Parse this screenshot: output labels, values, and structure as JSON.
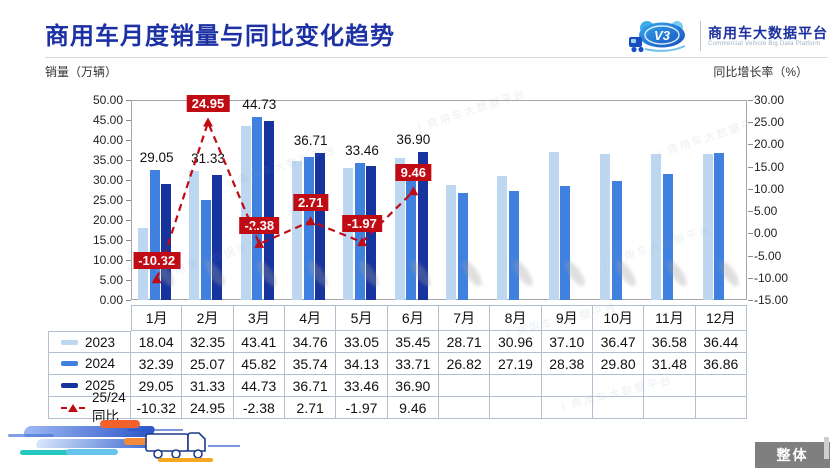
{
  "header": {
    "title": "商用车月度销量与同比变化趋势"
  },
  "logo": {
    "badge": "V3",
    "name_cn": "商用车大数据平台",
    "name_en": "Commercial Vehicle Big Data Platform"
  },
  "axes": {
    "left_label": "销量（万辆）",
    "right_label": "同比增长率（%）"
  },
  "watermark_text": "商用车大数据平台",
  "footer": {
    "button": "整体"
  },
  "chart_data": {
    "type": "bar",
    "title": "商用车月度销量与同比变化趋势",
    "categories": [
      "1月",
      "2月",
      "3月",
      "4月",
      "5月",
      "6月",
      "7月",
      "8月",
      "9月",
      "10月",
      "11月",
      "12月"
    ],
    "series": [
      {
        "name": "2023",
        "color": "#bdd7f0",
        "values": [
          18.04,
          32.35,
          43.41,
          34.76,
          33.05,
          35.45,
          28.71,
          30.96,
          37.1,
          36.47,
          36.58,
          36.44
        ]
      },
      {
        "name": "2024",
        "color": "#4081e0",
        "values": [
          32.39,
          25.07,
          45.82,
          35.74,
          34.13,
          33.71,
          26.82,
          27.19,
          28.38,
          29.8,
          31.48,
          36.86
        ]
      },
      {
        "name": "2025",
        "color": "#16339e",
        "values": [
          29.05,
          31.33,
          44.73,
          36.71,
          33.46,
          36.9,
          null,
          null,
          null,
          null,
          null,
          null
        ]
      }
    ],
    "line_series": {
      "name": "25/24同比",
      "color": "#c00a14",
      "type": "line",
      "values": [
        -10.32,
        24.95,
        -2.38,
        2.71,
        -1.97,
        9.46,
        null,
        null,
        null,
        null,
        null,
        null
      ]
    },
    "bar_label_series": "2025",
    "left_axis": {
      "label": "销量（万辆）",
      "min": 0,
      "max": 50,
      "step": 5
    },
    "right_axis": {
      "label": "同比增长率（%）",
      "min": -15,
      "max": 30,
      "step": 5
    },
    "grid": false,
    "legend_position": "table-left"
  }
}
